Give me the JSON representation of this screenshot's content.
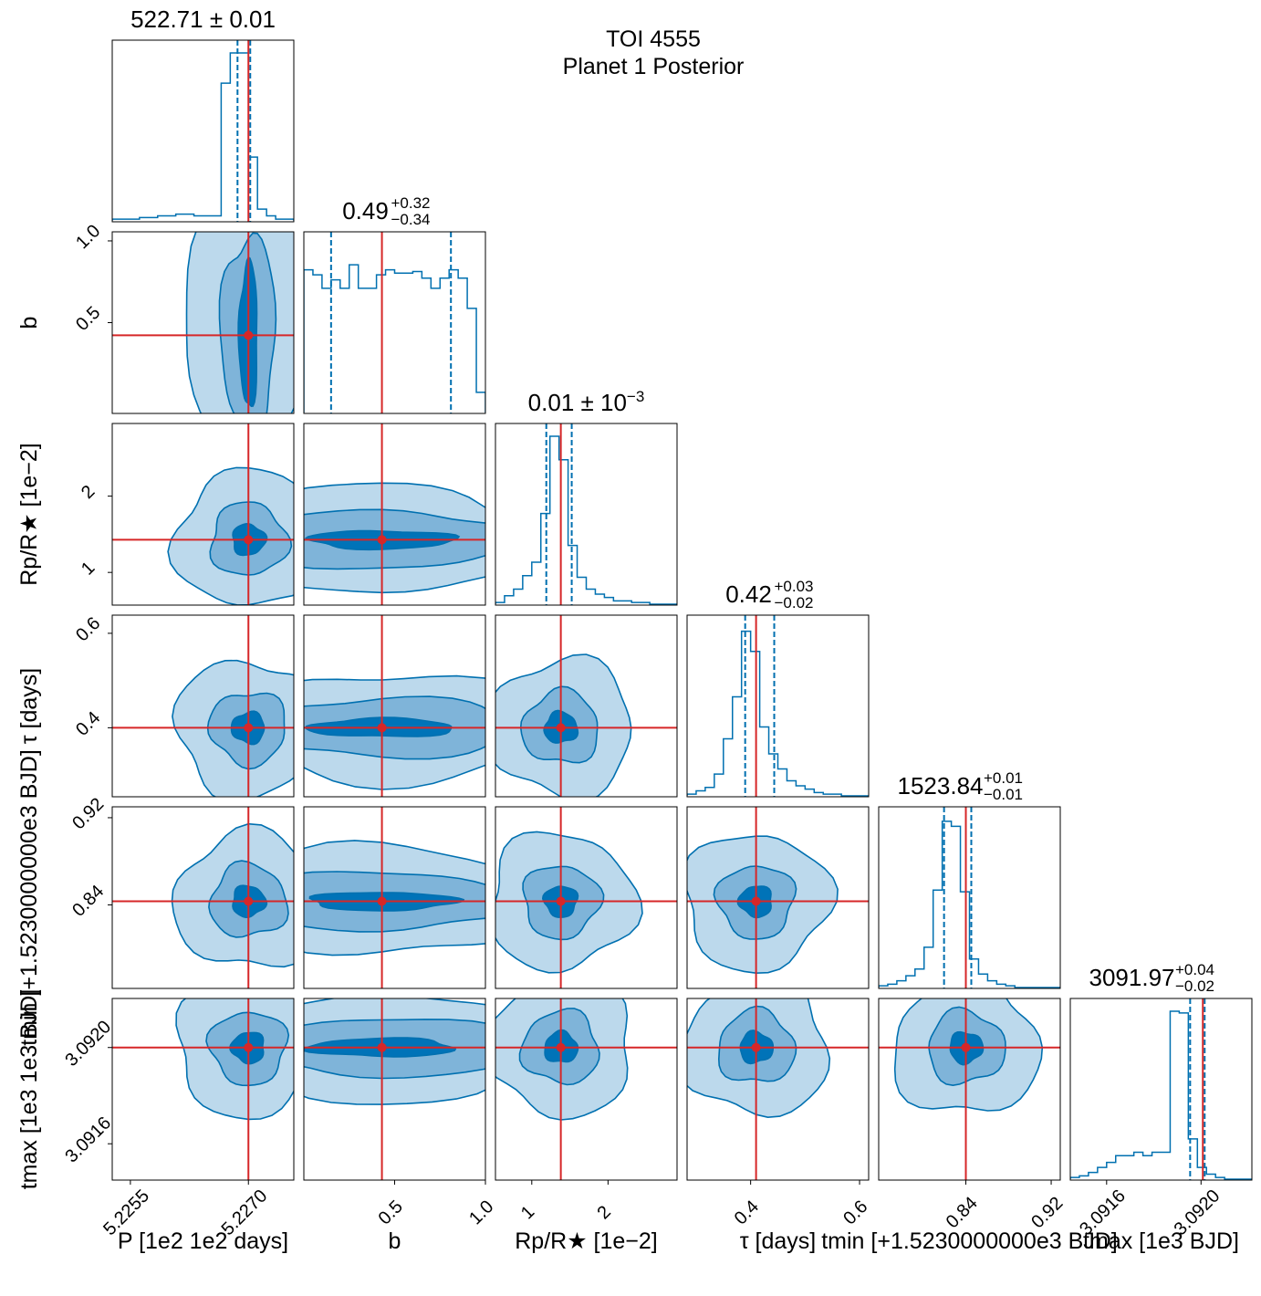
{
  "figure": {
    "title_line1": "TOI 4555",
    "title_line2": "Planet 1 Posterior"
  },
  "colors": {
    "contour_light": "#bcd9ec",
    "contour_mid": "#7fb4d9",
    "contour_dark": "#0073b8",
    "contour_line": "#0070b0",
    "truth": "#d62728",
    "axes": "#000000"
  },
  "chart_data": {
    "type": "corner",
    "parameters": [
      {
        "key": "P",
        "xlabel": "P [1e2 1e2   days]",
        "ylabel": "",
        "title": "522.71 ± 0.01",
        "ticks": [
          "5.2255",
          "5.2270"
        ],
        "truth": 522.71
      },
      {
        "key": "b",
        "xlabel": "b",
        "ylabel": "b",
        "title": "0.49 +0.32 −0.34",
        "ticks": [
          "0.5",
          "1.0"
        ],
        "truth": 0.49
      },
      {
        "key": "rp",
        "xlabel": "Rp/R★ [1e−2]",
        "ylabel": "Rp/R★ [1e−2]",
        "title": "0.01 ± 10−3",
        "ticks": [
          "1",
          "2"
        ],
        "truth": 1.4
      },
      {
        "key": "tau",
        "xlabel": "τ [days]",
        "ylabel": "τ [days]",
        "title": "0.42 +0.03 −0.02",
        "ticks": [
          "0.4",
          "0.6"
        ],
        "truth": 0.42
      },
      {
        "key": "tmin",
        "xlabel": "t_min [+1.5230000000e3 BJD]",
        "ylabel": "t_min [+1.5230000000e3 BJD]",
        "title": "1523.84 +0.01 −0.01",
        "ticks": [
          "0.84",
          "0.92"
        ],
        "truth": 0.84
      },
      {
        "key": "tmax",
        "xlabel": "t_max [1e3 BJD]",
        "ylabel": "t_max [1e3 1e3 BJD]",
        "title": "3091.97 +0.04 −0.02",
        "ticks": [
          "3.0916",
          "3.0920"
        ],
        "truth": 3.09197
      }
    ],
    "title_parts": [
      {
        "value": "522.71",
        "pm": "± 0.01"
      },
      {
        "value": "0.49",
        "up": "+0.32",
        "down": "−0.34"
      },
      {
        "value": "0.01",
        "pm": "± 10",
        "exp": "−3"
      },
      {
        "value": "0.42",
        "up": "+0.03",
        "down": "−0.02"
      },
      {
        "value": "1523.84",
        "up": "+0.01",
        "down": "−0.01"
      },
      {
        "value": "3091.97",
        "up": "+0.04",
        "down": "−0.02"
      }
    ],
    "xlabels": [
      "P [1e2 1e2   days]",
      "b",
      "Rp/R★ [1e−2]",
      "τ [days]",
      "tmin [+1.5230000000e3 BJD]",
      "tmax [1e3 BJD]"
    ],
    "ylabels": [
      "b",
      "Rp/R★ [1e−2]",
      "τ [days]",
      "tmin [+1.5230000000e3 BJD]",
      "tmax [1e3 1e3 BJD]"
    ],
    "x_ticks": [
      [
        "5.2255",
        "5.2270"
      ],
      [
        "0.5",
        "1.0"
      ],
      [
        "1",
        "2"
      ],
      [
        "0.4",
        "0.6"
      ],
      [
        "0.84",
        "0.92"
      ],
      [
        "3.0916",
        "3.0920"
      ]
    ],
    "y_ticks": [
      [
        "1.0",
        "0.5"
      ],
      [
        "2",
        "1"
      ],
      [
        "0.6",
        "0.4"
      ],
      [
        "0.92",
        "0.84"
      ],
      [
        "3.0920",
        "3.0916"
      ]
    ],
    "histograms": [
      [
        0.01,
        0.01,
        0.01,
        0.02,
        0.02,
        0.03,
        0.03,
        0.04,
        0.04,
        0.03,
        0.03,
        0.03,
        0.82,
        1.0,
        1.0,
        0.38,
        0.07,
        0.03,
        0.01,
        0.01
      ],
      [
        0.85,
        0.82,
        0.74,
        0.79,
        0.74,
        0.88,
        0.74,
        0.74,
        0.82,
        0.85,
        0.83,
        0.83,
        0.84,
        0.8,
        0.74,
        0.8,
        0.85,
        0.8,
        0.62,
        0.12
      ],
      [
        0.01,
        0.05,
        0.09,
        0.17,
        0.25,
        0.54,
        1.0,
        0.86,
        0.35,
        0.16,
        0.09,
        0.06,
        0.04,
        0.02,
        0.02,
        0.01,
        0.01,
        0.0,
        0.0,
        0.0
      ],
      [
        0.01,
        0.03,
        0.05,
        0.13,
        0.34,
        0.59,
        0.98,
        0.86,
        0.41,
        0.25,
        0.16,
        0.09,
        0.06,
        0.04,
        0.02,
        0.01,
        0.01,
        0.0,
        0.0,
        0.0
      ],
      [
        0.01,
        0.02,
        0.04,
        0.07,
        0.11,
        0.24,
        0.58,
        0.99,
        0.96,
        0.57,
        0.17,
        0.08,
        0.04,
        0.02,
        0.01,
        0.0,
        0.0,
        0.0,
        0.0,
        0.0
      ],
      [
        0.01,
        0.02,
        0.04,
        0.07,
        0.1,
        0.14,
        0.14,
        0.16,
        0.14,
        0.16,
        0.16,
        1.0,
        0.99,
        0.24,
        0.07,
        0.03,
        0.01,
        0.0,
        0.0,
        0.0
      ]
    ],
    "truth_fraction": [
      0.75,
      0.43,
      0.36,
      0.38,
      0.48,
      0.73
    ],
    "quantile_fraction": [
      [
        0.69,
        0.76
      ],
      [
        0.15,
        0.81
      ],
      [
        0.28,
        0.42
      ],
      [
        0.32,
        0.48
      ],
      [
        0.36,
        0.51
      ],
      [
        0.66,
        0.74
      ]
    ],
    "contour_levels": [
      "0.393",
      "0.865",
      "0.989"
    ]
  }
}
